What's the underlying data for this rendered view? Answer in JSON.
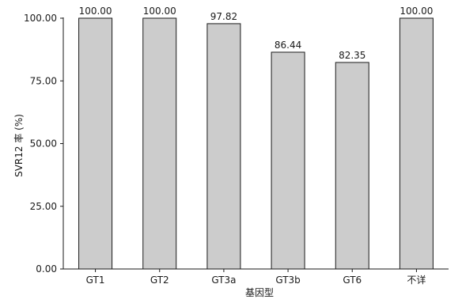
{
  "chart_data": {
    "type": "bar",
    "categories": [
      "GT1",
      "GT2",
      "GT3a",
      "GT3b",
      "GT6",
      "不详"
    ],
    "values": [
      100.0,
      100.0,
      97.82,
      86.44,
      82.35,
      100.0
    ],
    "data_labels": [
      "100.00",
      "100.00",
      "97.82",
      "86.44",
      "82.35",
      "100.00"
    ],
    "title": "",
    "xlabel": "基因型",
    "ylabel": "SVR12 率 (%)",
    "ylim": [
      0,
      100
    ],
    "yticks": [
      0,
      25,
      50,
      75,
      100
    ],
    "ytick_labels": [
      "0.00",
      "25.00",
      "50.00",
      "75.00",
      "100.00"
    ],
    "grid": false,
    "legend": "none",
    "colors": {
      "bar_fill": "#cccccc",
      "bar_stroke": "#1a1a1a",
      "axis": "#1a1a1a"
    }
  }
}
